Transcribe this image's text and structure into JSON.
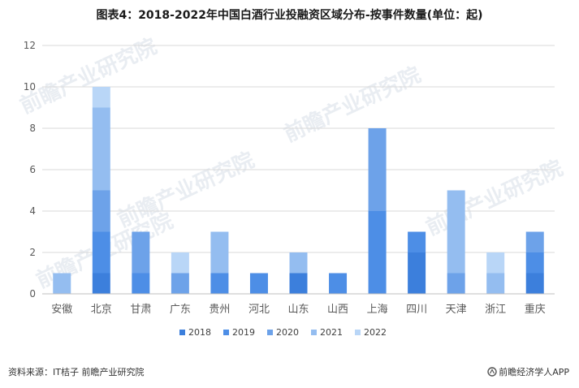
{
  "title": "图表4：2018-2022年中国白酒行业投融资区域分布-按事件数量(单位：起)",
  "footer": {
    "source": "资料来源：IT桔子 前瞻产业研究院",
    "brand": "前瞻经济学人APP"
  },
  "watermark": {
    "text": "前瞻产业研究院"
  },
  "colors": {
    "2018": "#3c7fdc",
    "2019": "#4d8ee6",
    "2020": "#6da2e9",
    "2021": "#94bdf0",
    "2022": "#b9d6f7",
    "grid": "#d9d9d9",
    "axis_text": "#595959"
  },
  "chart_data": {
    "type": "bar",
    "stacked": true,
    "title": "图表4：2018-2022年中国白酒行业投融资区域分布-按事件数量(单位：起)",
    "xlabel": "",
    "ylabel": "",
    "ylim": [
      0,
      12
    ],
    "yticks": [
      0,
      2,
      4,
      6,
      8,
      10,
      12
    ],
    "grid": true,
    "legend": "bottom",
    "categories": [
      "安徽",
      "北京",
      "甘肃",
      "广东",
      "贵州",
      "河北",
      "山东",
      "山西",
      "上海",
      "四川",
      "天津",
      "浙江",
      "重庆"
    ],
    "series": [
      {
        "name": "2018",
        "values": [
          0,
          1,
          0,
          0,
          0,
          0,
          1,
          0,
          0,
          2,
          0,
          0,
          1
        ]
      },
      {
        "name": "2019",
        "values": [
          0,
          2,
          1,
          0,
          1,
          1,
          0,
          1,
          4,
          1,
          0,
          0,
          1
        ]
      },
      {
        "name": "2020",
        "values": [
          0,
          2,
          2,
          1,
          0,
          0,
          0,
          0,
          4,
          0,
          1,
          0,
          1
        ]
      },
      {
        "name": "2021",
        "values": [
          1,
          4,
          0,
          0,
          2,
          0,
          1,
          0,
          0,
          0,
          4,
          1,
          0
        ]
      },
      {
        "name": "2022",
        "values": [
          0,
          1,
          0,
          1,
          0,
          0,
          0,
          0,
          0,
          0,
          0,
          1,
          0
        ]
      }
    ]
  }
}
